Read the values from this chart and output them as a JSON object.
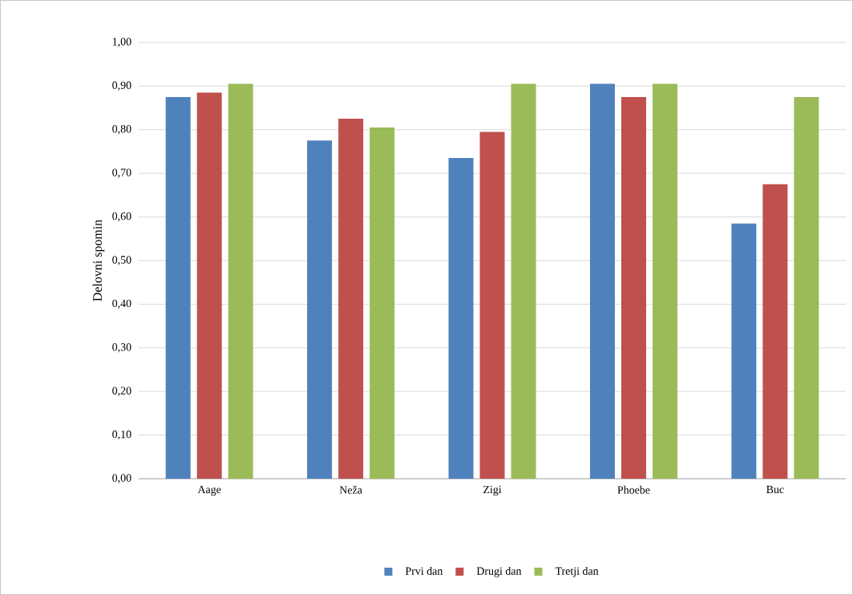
{
  "chart_data": {
    "type": "bar",
    "ylabel": "Delovni spomin",
    "categories": [
      "Aage",
      "Neža",
      "Zigi",
      "Phoebe",
      "Buc"
    ],
    "series": [
      {
        "name": "Prvi dan",
        "color": "#4f81bd",
        "values": [
          0.875,
          0.775,
          0.735,
          0.905,
          0.585
        ]
      },
      {
        "name": "Drugi dan",
        "color": "#c0504d",
        "values": [
          0.885,
          0.825,
          0.795,
          0.875,
          0.675
        ]
      },
      {
        "name": "Tretji dan",
        "color": "#9bbb59",
        "values": [
          0.905,
          0.805,
          0.905,
          0.905,
          0.875
        ]
      }
    ],
    "ylim": [
      0,
      1
    ],
    "yticks": [
      {
        "value": 0,
        "label": "0,00"
      },
      {
        "value": 0.1,
        "label": "0,10"
      },
      {
        "value": 0.2,
        "label": "0,20"
      },
      {
        "value": 0.3,
        "label": "0,30"
      },
      {
        "value": 0.4,
        "label": "0,40"
      },
      {
        "value": 0.5,
        "label": "0,50"
      },
      {
        "value": 0.6,
        "label": "0,60"
      },
      {
        "value": 0.7,
        "label": "0,70"
      },
      {
        "value": 0.8,
        "label": "0,80"
      },
      {
        "value": 0.9,
        "label": "0,90"
      },
      {
        "value": 1,
        "label": "1,00"
      }
    ],
    "grid": "y",
    "legend": "bottom"
  }
}
